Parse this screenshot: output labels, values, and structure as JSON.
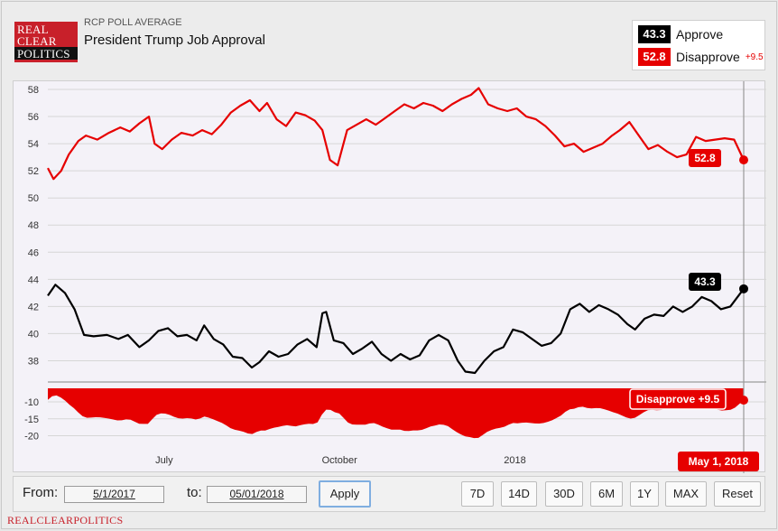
{
  "header": {
    "logo_lines": [
      "REAL",
      "CLEAR",
      "POLITICS"
    ],
    "kicker": "RCP POLL AVERAGE",
    "title": "President Trump Job Approval"
  },
  "legend": {
    "approve_value": "43.3",
    "approve_label": "Approve",
    "disapprove_value": "52.8",
    "disapprove_label": "Disapprove",
    "spread": "+9.5"
  },
  "colors": {
    "approve": "#000000",
    "disapprove": "#e60000",
    "accent": "#c8202a"
  },
  "chart_data": {
    "type": "line",
    "x_start": "2017-05-01",
    "x_end": "2018-05-01",
    "x_ticks": [
      {
        "date": "2017-07-01",
        "label": "July"
      },
      {
        "date": "2017-10-01",
        "label": "October"
      },
      {
        "date": "2018-01-01",
        "label": "2018"
      }
    ],
    "y_ticks": [
      38,
      40,
      42,
      44,
      46,
      48,
      50,
      52,
      54,
      56,
      58
    ],
    "ylim": [
      36.5,
      58.6
    ],
    "grid": true,
    "legend_placement": "top-right",
    "series": [
      {
        "name": "Approve",
        "color": "#000000",
        "points": [
          [
            "2017-05-01",
            42.8
          ],
          [
            "2017-05-05",
            43.6
          ],
          [
            "2017-05-10",
            43.0
          ],
          [
            "2017-05-15",
            41.8
          ],
          [
            "2017-05-20",
            39.9
          ],
          [
            "2017-05-25",
            39.8
          ],
          [
            "2017-06-01",
            39.9
          ],
          [
            "2017-06-07",
            39.6
          ],
          [
            "2017-06-12",
            39.9
          ],
          [
            "2017-06-18",
            39.0
          ],
          [
            "2017-06-23",
            39.5
          ],
          [
            "2017-06-28",
            40.2
          ],
          [
            "2017-07-03",
            40.4
          ],
          [
            "2017-07-08",
            39.8
          ],
          [
            "2017-07-13",
            39.9
          ],
          [
            "2017-07-18",
            39.5
          ],
          [
            "2017-07-22",
            40.6
          ],
          [
            "2017-07-27",
            39.6
          ],
          [
            "2017-08-01",
            39.2
          ],
          [
            "2017-08-06",
            38.3
          ],
          [
            "2017-08-11",
            38.2
          ],
          [
            "2017-08-16",
            37.5
          ],
          [
            "2017-08-20",
            37.9
          ],
          [
            "2017-08-25",
            38.7
          ],
          [
            "2017-08-30",
            38.3
          ],
          [
            "2017-09-04",
            38.5
          ],
          [
            "2017-09-09",
            39.2
          ],
          [
            "2017-09-14",
            39.6
          ],
          [
            "2017-09-19",
            39.0
          ],
          [
            "2017-09-22",
            41.5
          ],
          [
            "2017-09-24",
            41.6
          ],
          [
            "2017-09-28",
            39.5
          ],
          [
            "2017-10-03",
            39.3
          ],
          [
            "2017-10-08",
            38.5
          ],
          [
            "2017-10-13",
            38.9
          ],
          [
            "2017-10-18",
            39.4
          ],
          [
            "2017-10-23",
            38.5
          ],
          [
            "2017-10-28",
            38.0
          ],
          [
            "2017-11-02",
            38.5
          ],
          [
            "2017-11-07",
            38.1
          ],
          [
            "2017-11-12",
            38.4
          ],
          [
            "2017-11-17",
            39.5
          ],
          [
            "2017-11-22",
            39.9
          ],
          [
            "2017-11-27",
            39.5
          ],
          [
            "2017-12-02",
            38.0
          ],
          [
            "2017-12-06",
            37.2
          ],
          [
            "2017-12-11",
            37.1
          ],
          [
            "2017-12-16",
            38.0
          ],
          [
            "2017-12-21",
            38.7
          ],
          [
            "2017-12-26",
            39.0
          ],
          [
            "2017-12-31",
            40.3
          ],
          [
            "2018-01-05",
            40.1
          ],
          [
            "2018-01-10",
            39.6
          ],
          [
            "2018-01-15",
            39.1
          ],
          [
            "2018-01-20",
            39.3
          ],
          [
            "2018-01-25",
            40.0
          ],
          [
            "2018-01-30",
            41.8
          ],
          [
            "2018-02-04",
            42.2
          ],
          [
            "2018-02-09",
            41.6
          ],
          [
            "2018-02-14",
            42.1
          ],
          [
            "2018-02-19",
            41.8
          ],
          [
            "2018-02-24",
            41.4
          ],
          [
            "2018-03-01",
            40.7
          ],
          [
            "2018-03-05",
            40.3
          ],
          [
            "2018-03-10",
            41.1
          ],
          [
            "2018-03-15",
            41.4
          ],
          [
            "2018-03-20",
            41.3
          ],
          [
            "2018-03-25",
            42.0
          ],
          [
            "2018-03-30",
            41.6
          ],
          [
            "2018-04-04",
            42.0
          ],
          [
            "2018-04-09",
            42.7
          ],
          [
            "2018-04-14",
            42.4
          ],
          [
            "2018-04-19",
            41.8
          ],
          [
            "2018-04-24",
            42.0
          ],
          [
            "2018-05-01",
            43.3
          ]
        ]
      },
      {
        "name": "Disapprove",
        "color": "#e60000",
        "points": [
          [
            "2017-05-01",
            52.2
          ],
          [
            "2017-05-04",
            51.4
          ],
          [
            "2017-05-08",
            52.0
          ],
          [
            "2017-05-12",
            53.2
          ],
          [
            "2017-05-17",
            54.2
          ],
          [
            "2017-05-21",
            54.6
          ],
          [
            "2017-05-27",
            54.3
          ],
          [
            "2017-06-02",
            54.8
          ],
          [
            "2017-06-08",
            55.2
          ],
          [
            "2017-06-13",
            54.9
          ],
          [
            "2017-06-18",
            55.5
          ],
          [
            "2017-06-23",
            56.0
          ],
          [
            "2017-06-26",
            54.0
          ],
          [
            "2017-06-30",
            53.6
          ],
          [
            "2017-07-05",
            54.3
          ],
          [
            "2017-07-10",
            54.8
          ],
          [
            "2017-07-16",
            54.6
          ],
          [
            "2017-07-21",
            55.0
          ],
          [
            "2017-07-26",
            54.7
          ],
          [
            "2017-07-31",
            55.4
          ],
          [
            "2017-08-05",
            56.3
          ],
          [
            "2017-08-10",
            56.8
          ],
          [
            "2017-08-15",
            57.2
          ],
          [
            "2017-08-20",
            56.4
          ],
          [
            "2017-08-24",
            57.0
          ],
          [
            "2017-08-29",
            55.8
          ],
          [
            "2017-09-03",
            55.3
          ],
          [
            "2017-09-08",
            56.3
          ],
          [
            "2017-09-13",
            56.1
          ],
          [
            "2017-09-18",
            55.7
          ],
          [
            "2017-09-22",
            55.0
          ],
          [
            "2017-09-26",
            52.8
          ],
          [
            "2017-09-30",
            52.4
          ],
          [
            "2017-10-05",
            55.0
          ],
          [
            "2017-10-10",
            55.4
          ],
          [
            "2017-10-15",
            55.8
          ],
          [
            "2017-10-20",
            55.4
          ],
          [
            "2017-10-25",
            55.9
          ],
          [
            "2017-10-30",
            56.4
          ],
          [
            "2017-11-04",
            56.9
          ],
          [
            "2017-11-09",
            56.6
          ],
          [
            "2017-11-14",
            57.0
          ],
          [
            "2017-11-19",
            56.8
          ],
          [
            "2017-11-24",
            56.4
          ],
          [
            "2017-11-29",
            56.9
          ],
          [
            "2017-12-04",
            57.3
          ],
          [
            "2017-12-09",
            57.6
          ],
          [
            "2017-12-13",
            58.1
          ],
          [
            "2017-12-18",
            56.9
          ],
          [
            "2017-12-23",
            56.6
          ],
          [
            "2017-12-28",
            56.4
          ],
          [
            "2018-01-02",
            56.6
          ],
          [
            "2018-01-07",
            56.0
          ],
          [
            "2018-01-12",
            55.8
          ],
          [
            "2018-01-17",
            55.3
          ],
          [
            "2018-01-22",
            54.6
          ],
          [
            "2018-01-27",
            53.8
          ],
          [
            "2018-02-01",
            54.0
          ],
          [
            "2018-02-06",
            53.4
          ],
          [
            "2018-02-11",
            53.7
          ],
          [
            "2018-02-16",
            54.0
          ],
          [
            "2018-02-21",
            54.6
          ],
          [
            "2018-02-25",
            55.0
          ],
          [
            "2018-03-02",
            55.6
          ],
          [
            "2018-03-07",
            54.6
          ],
          [
            "2018-03-12",
            53.6
          ],
          [
            "2018-03-17",
            53.9
          ],
          [
            "2018-03-22",
            53.4
          ],
          [
            "2018-03-27",
            53.0
          ],
          [
            "2018-04-01",
            53.2
          ],
          [
            "2018-04-06",
            54.5
          ],
          [
            "2018-04-11",
            54.2
          ],
          [
            "2018-04-16",
            54.3
          ],
          [
            "2018-04-21",
            54.4
          ],
          [
            "2018-04-26",
            54.3
          ],
          [
            "2018-05-01",
            52.8
          ]
        ]
      }
    ],
    "spread_panel": {
      "y_ticks": [
        -10,
        -15,
        -20
      ],
      "ylim": [
        -22,
        -6
      ],
      "series_label": "Disapprove",
      "color": "#e60000"
    },
    "callouts": {
      "approve_end": "43.3",
      "disapprove_end": "52.8",
      "spread_end": "Disapprove +9.5",
      "date_end": "May 1, 2018"
    }
  },
  "controls": {
    "from_label": "From:",
    "from_value": "5/1/2017",
    "to_label": "to:",
    "to_value": "05/01/2018",
    "apply_label": "Apply",
    "ranges": [
      "7D",
      "14D",
      "30D",
      "6M",
      "1Y",
      "MAX",
      "Reset"
    ]
  },
  "footer": {
    "brand": "REALCLEARPOLITICS"
  }
}
